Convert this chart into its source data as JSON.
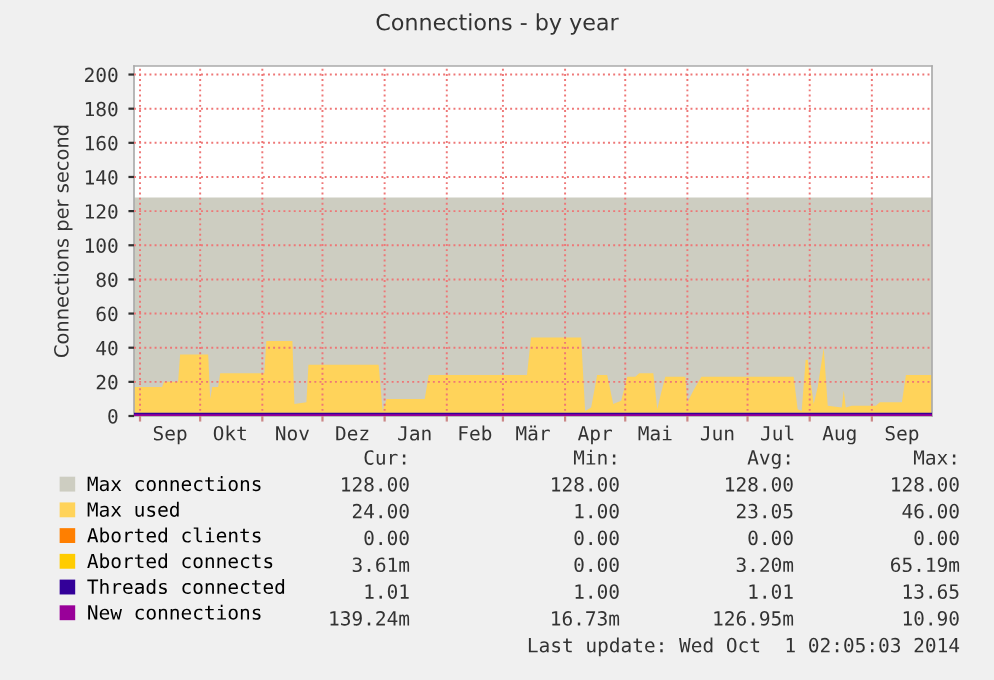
{
  "chart_data": {
    "type": "area",
    "title": "Connections - by year",
    "ylabel": "Connections per second",
    "xlim": [
      "2013-08-29",
      "2014-10-01"
    ],
    "ylim": [
      0,
      205
    ],
    "yticks": [
      0,
      20,
      40,
      60,
      80,
      100,
      120,
      140,
      160,
      180,
      200
    ],
    "xticks": [
      {
        "value": "2013-09-01",
        "label": null
      },
      {
        "value": "2013-09-16",
        "label": "Sep"
      },
      {
        "value": "2013-10-01",
        "label": null
      },
      {
        "value": "2013-10-16",
        "label": "Okt"
      },
      {
        "value": "2013-11-01",
        "label": null
      },
      {
        "value": "2013-11-16",
        "label": "Nov"
      },
      {
        "value": "2013-12-01",
        "label": null
      },
      {
        "value": "2013-12-16",
        "label": "Dez"
      },
      {
        "value": "2014-01-01",
        "label": null
      },
      {
        "value": "2014-01-16",
        "label": "Jan"
      },
      {
        "value": "2014-02-01",
        "label": null
      },
      {
        "value": "2014-02-15",
        "label": "Feb"
      },
      {
        "value": "2014-03-01",
        "label": null
      },
      {
        "value": "2014-03-16",
        "label": "Mär"
      },
      {
        "value": "2014-04-01",
        "label": null
      },
      {
        "value": "2014-04-16",
        "label": "Apr"
      },
      {
        "value": "2014-05-01",
        "label": null
      },
      {
        "value": "2014-05-16",
        "label": "Mai"
      },
      {
        "value": "2014-06-01",
        "label": null
      },
      {
        "value": "2014-06-16",
        "label": "Jun"
      },
      {
        "value": "2014-07-01",
        "label": null
      },
      {
        "value": "2014-07-16",
        "label": "Jul"
      },
      {
        "value": "2014-08-01",
        "label": null
      },
      {
        "value": "2014-08-16",
        "label": "Aug"
      },
      {
        "value": "2014-09-01",
        "label": null
      },
      {
        "value": "2014-09-16",
        "label": "Sep"
      }
    ],
    "grid": true,
    "legend": "bottom",
    "series": [
      {
        "name": "Max connections",
        "type": "area",
        "color": "#cdcdc1",
        "x": [
          "2013-08-29",
          "2014-10-01"
        ],
        "values": [
          128,
          128
        ]
      },
      {
        "name": "Max used",
        "color": "#ffd35a",
        "x": [
          "2013-08-29",
          "2013-09-12",
          "2013-09-13",
          "2013-09-20",
          "2013-09-21",
          "2013-10-05",
          "2013-10-06",
          "2013-10-07",
          "2013-10-10",
          "2013-10-11",
          "2013-11-02",
          "2013-11-03",
          "2013-11-16",
          "2013-11-17",
          "2013-11-23",
          "2013-11-24",
          "2013-12-29",
          "2013-12-31",
          "2014-01-02",
          "2014-01-21",
          "2014-01-23",
          "2014-03-13",
          "2014-03-15",
          "2014-04-09",
          "2014-04-11",
          "2014-04-14",
          "2014-04-17",
          "2014-04-22",
          "2014-04-25",
          "2014-04-29",
          "2014-05-02",
          "2014-05-06",
          "2014-05-08",
          "2014-05-15",
          "2014-05-17",
          "2014-05-19",
          "2014-05-21",
          "2014-05-31",
          "2014-06-01",
          "2014-06-04",
          "2014-06-08",
          "2014-07-24",
          "2014-07-26",
          "2014-07-28",
          "2014-07-30",
          "2014-07-31",
          "2014-08-03",
          "2014-08-05",
          "2014-08-08",
          "2014-08-10",
          "2014-08-17",
          "2014-08-18",
          "2014-08-19",
          "2014-08-22",
          "2014-09-03",
          "2014-09-05",
          "2014-09-16",
          "2014-09-18",
          "2014-10-01"
        ],
        "values": [
          17,
          17,
          20,
          20,
          36,
          36,
          10,
          17,
          17,
          25,
          25,
          44,
          44,
          7,
          8,
          30,
          30,
          3,
          10,
          10,
          24,
          24,
          46,
          46,
          3,
          5,
          24,
          24,
          7,
          9,
          23,
          23,
          25,
          25,
          4,
          14,
          23,
          23,
          8,
          15,
          23,
          23,
          4,
          3,
          33,
          33,
          7,
          17,
          40,
          6,
          5,
          15,
          5,
          6,
          6,
          8,
          8,
          24,
          24
        ]
      },
      {
        "name": "Aborted clients",
        "type": "line",
        "color": "#ff7f00",
        "values": [
          null,
          null
        ]
      },
      {
        "name": "Aborted connects",
        "type": "line",
        "color": "#ffcc00",
        "values": [
          null,
          null
        ]
      },
      {
        "name": "Threads connected",
        "type": "line",
        "color": "#330099",
        "x": [
          "2013-08-29",
          "2014-10-01"
        ],
        "values": [
          1,
          1
        ]
      },
      {
        "name": "New connections",
        "type": "line",
        "color": "#990099",
        "x": [
          "2013-08-29",
          "2014-10-01"
        ],
        "values": [
          0,
          0
        ]
      }
    ],
    "annotations": [
      "Cur:",
      "Min:",
      "Avg:",
      "Max:",
      "128.00",
      "128.00",
      "128.00",
      "128.00",
      "24.00",
      "1.00",
      "23.05",
      "46.00",
      "0.00",
      "0.00",
      "0.00",
      "0.00",
      "3.61m",
      "0.00",
      "3.20m",
      "65.19m",
      "1.01",
      "1.00",
      "1.01",
      "13.65",
      "139.24m",
      "16.73m",
      "126.95m",
      "10.90",
      "Last update: Wed Oct  1 02:05:03 2014"
    ]
  }
}
